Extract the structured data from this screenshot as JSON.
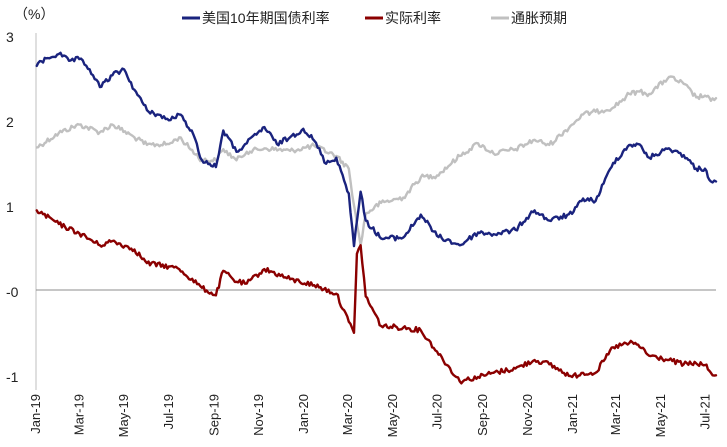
{
  "chart_data": {
    "type": "line",
    "unit_label": "（%）",
    "x_ticks": [
      "Jan-19",
      "Mar-19",
      "May-19",
      "Jul-19",
      "Sep-19",
      "Nov-19",
      "Jan-20",
      "Mar-20",
      "May-20",
      "Jul-20",
      "Sep-20",
      "Nov-20",
      "Jan-21",
      "Mar-21",
      "May-21",
      "Jul-21"
    ],
    "y_ticks": [
      "3",
      "2",
      "1",
      "-0",
      "-1"
    ],
    "ylim": [
      -1,
      3
    ],
    "legend_position": "top",
    "series": [
      {
        "name": "美国10年期国债利率",
        "color": "#1a237e",
        "points": [
          [
            "2019-01-02",
            2.66
          ],
          [
            "2019-01-15",
            2.75
          ],
          [
            "2019-02-01",
            2.8
          ],
          [
            "2019-02-15",
            2.72
          ],
          [
            "2019-03-01",
            2.74
          ],
          [
            "2019-03-15",
            2.62
          ],
          [
            "2019-03-29",
            2.41
          ],
          [
            "2019-04-15",
            2.55
          ],
          [
            "2019-05-01",
            2.62
          ],
          [
            "2019-05-15",
            2.38
          ],
          [
            "2019-06-01",
            2.14
          ],
          [
            "2019-06-15",
            2.09
          ],
          [
            "2019-07-01",
            2.02
          ],
          [
            "2019-07-15",
            2.09
          ],
          [
            "2019-08-01",
            1.9
          ],
          [
            "2019-08-15",
            1.55
          ],
          [
            "2019-09-03",
            1.47
          ],
          [
            "2019-09-13",
            1.9
          ],
          [
            "2019-10-01",
            1.65
          ],
          [
            "2019-10-15",
            1.75
          ],
          [
            "2019-11-08",
            1.94
          ],
          [
            "2019-11-25",
            1.74
          ],
          [
            "2019-12-13",
            1.82
          ],
          [
            "2019-12-31",
            1.92
          ],
          [
            "2020-01-15",
            1.78
          ],
          [
            "2020-01-31",
            1.51
          ],
          [
            "2020-02-14",
            1.58
          ],
          [
            "2020-03-02",
            1.16
          ],
          [
            "2020-03-09",
            0.54
          ],
          [
            "2020-03-18",
            1.18
          ],
          [
            "2020-03-25",
            0.84
          ],
          [
            "2020-04-15",
            0.63
          ],
          [
            "2020-05-15",
            0.64
          ],
          [
            "2020-06-08",
            0.91
          ],
          [
            "2020-06-30",
            0.66
          ],
          [
            "2020-07-31",
            0.55
          ],
          [
            "2020-08-25",
            0.7
          ],
          [
            "2020-09-15",
            0.68
          ],
          [
            "2020-10-15",
            0.73
          ],
          [
            "2020-10-30",
            0.87
          ],
          [
            "2020-11-10",
            0.96
          ],
          [
            "2020-11-30",
            0.84
          ],
          [
            "2020-12-31",
            0.92
          ],
          [
            "2021-01-15",
            1.1
          ],
          [
            "2021-02-01",
            1.07
          ],
          [
            "2021-02-25",
            1.52
          ],
          [
            "2021-03-19",
            1.73
          ],
          [
            "2021-03-31",
            1.74
          ],
          [
            "2021-04-15",
            1.58
          ],
          [
            "2021-05-12",
            1.69
          ],
          [
            "2021-06-01",
            1.61
          ],
          [
            "2021-06-18",
            1.45
          ],
          [
            "2021-06-30",
            1.45
          ],
          [
            "2021-07-08",
            1.3
          ],
          [
            "2021-07-15",
            1.3
          ]
        ]
      },
      {
        "name": "实际利率",
        "color": "#8b0000",
        "points": [
          [
            "2019-01-02",
            0.96
          ],
          [
            "2019-02-01",
            0.8
          ],
          [
            "2019-03-01",
            0.69
          ],
          [
            "2019-03-29",
            0.55
          ],
          [
            "2019-04-15",
            0.6
          ],
          [
            "2019-05-15",
            0.5
          ],
          [
            "2019-06-01",
            0.34
          ],
          [
            "2019-07-01",
            0.3
          ],
          [
            "2019-07-15",
            0.27
          ],
          [
            "2019-08-15",
            0.05
          ],
          [
            "2019-09-03",
            -0.04
          ],
          [
            "2019-09-13",
            0.25
          ],
          [
            "2019-10-01",
            0.12
          ],
          [
            "2019-10-15",
            0.1
          ],
          [
            "2019-11-08",
            0.27
          ],
          [
            "2019-12-13",
            0.15
          ],
          [
            "2020-01-15",
            0.08
          ],
          [
            "2020-02-14",
            -0.02
          ],
          [
            "2020-03-02",
            -0.35
          ],
          [
            "2020-03-09",
            -0.48
          ],
          [
            "2020-03-13",
            0.45
          ],
          [
            "2020-03-18",
            0.55
          ],
          [
            "2020-03-25",
            -0.05
          ],
          [
            "2020-04-15",
            -0.4
          ],
          [
            "2020-05-15",
            -0.42
          ],
          [
            "2020-06-08",
            -0.45
          ],
          [
            "2020-06-30",
            -0.7
          ],
          [
            "2020-07-31",
            -1.05
          ],
          [
            "2020-08-25",
            -1.0
          ],
          [
            "2020-09-15",
            -0.95
          ],
          [
            "2020-10-15",
            -0.9
          ],
          [
            "2020-11-10",
            -0.8
          ],
          [
            "2020-11-30",
            -0.85
          ],
          [
            "2020-12-31",
            -1.0
          ],
          [
            "2021-01-15",
            -0.95
          ],
          [
            "2021-02-01",
            -0.95
          ],
          [
            "2021-02-25",
            -0.65
          ],
          [
            "2021-03-19",
            -0.6
          ],
          [
            "2021-03-31",
            -0.62
          ],
          [
            "2021-04-15",
            -0.75
          ],
          [
            "2021-05-12",
            -0.8
          ],
          [
            "2021-06-01",
            -0.85
          ],
          [
            "2021-06-18",
            -0.84
          ],
          [
            "2021-06-30",
            -0.86
          ],
          [
            "2021-07-08",
            -0.95
          ],
          [
            "2021-07-15",
            -0.98
          ]
        ]
      },
      {
        "name": "通胀预期",
        "color": "#c0c0c0",
        "points": [
          [
            "2019-01-02",
            1.7
          ],
          [
            "2019-02-01",
            1.87
          ],
          [
            "2019-03-01",
            1.97
          ],
          [
            "2019-03-29",
            1.88
          ],
          [
            "2019-04-15",
            1.97
          ],
          [
            "2019-05-15",
            1.82
          ],
          [
            "2019-06-01",
            1.73
          ],
          [
            "2019-07-01",
            1.74
          ],
          [
            "2019-07-15",
            1.82
          ],
          [
            "2019-08-15",
            1.55
          ],
          [
            "2019-09-03",
            1.55
          ],
          [
            "2019-09-13",
            1.68
          ],
          [
            "2019-10-01",
            1.55
          ],
          [
            "2019-10-15",
            1.65
          ],
          [
            "2019-11-08",
            1.69
          ],
          [
            "2019-12-13",
            1.66
          ],
          [
            "2020-01-15",
            1.72
          ],
          [
            "2020-02-14",
            1.6
          ],
          [
            "2020-03-02",
            1.45
          ],
          [
            "2020-03-09",
            1.02
          ],
          [
            "2020-03-18",
            0.55
          ],
          [
            "2020-03-25",
            0.92
          ],
          [
            "2020-04-15",
            1.05
          ],
          [
            "2020-05-15",
            1.11
          ],
          [
            "2020-06-08",
            1.35
          ],
          [
            "2020-06-30",
            1.37
          ],
          [
            "2020-07-31",
            1.6
          ],
          [
            "2020-08-25",
            1.75
          ],
          [
            "2020-09-15",
            1.63
          ],
          [
            "2020-10-15",
            1.68
          ],
          [
            "2020-11-10",
            1.79
          ],
          [
            "2020-11-30",
            1.73
          ],
          [
            "2020-12-31",
            1.97
          ],
          [
            "2021-01-15",
            2.09
          ],
          [
            "2021-02-01",
            2.12
          ],
          [
            "2021-02-25",
            2.17
          ],
          [
            "2021-03-19",
            2.33
          ],
          [
            "2021-03-31",
            2.36
          ],
          [
            "2021-04-15",
            2.33
          ],
          [
            "2021-05-12",
            2.53
          ],
          [
            "2021-06-01",
            2.45
          ],
          [
            "2021-06-18",
            2.29
          ],
          [
            "2021-06-30",
            2.31
          ],
          [
            "2021-07-08",
            2.25
          ],
          [
            "2021-07-15",
            2.28
          ]
        ]
      }
    ]
  }
}
